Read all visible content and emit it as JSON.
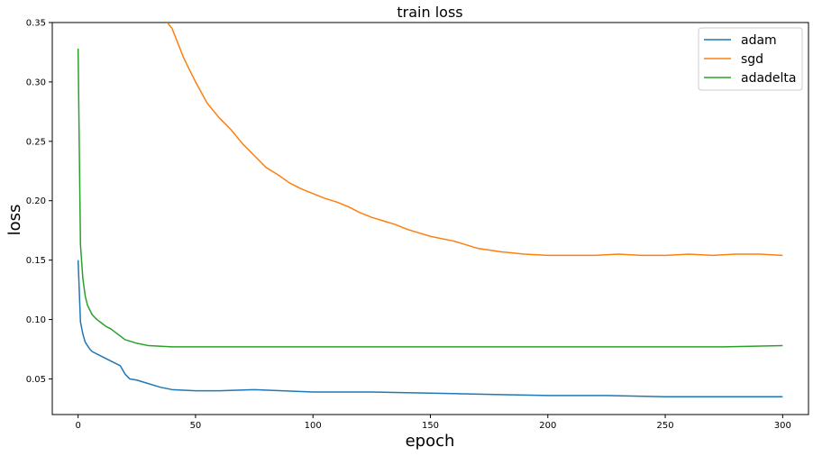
{
  "chart_data": {
    "type": "line",
    "title": "train loss",
    "xlabel": "epoch",
    "ylabel": "loss",
    "xlim": [
      -11,
      311
    ],
    "ylim": [
      0.02,
      0.35
    ],
    "xticks": [
      0,
      50,
      100,
      150,
      200,
      250,
      300
    ],
    "yticks": [
      0.05,
      0.1,
      0.15,
      0.2,
      0.25,
      0.3,
      0.35
    ],
    "ytick_labels": [
      "0.05",
      "0.10",
      "0.15",
      "0.20",
      "0.25",
      "0.30",
      "0.35"
    ],
    "grid": false,
    "legend_position": "top-right",
    "series": [
      {
        "name": "adam",
        "color": "#1f77b4",
        "points": [
          [
            0,
            0.15
          ],
          [
            1,
            0.098
          ],
          [
            2,
            0.088
          ],
          [
            3,
            0.081
          ],
          [
            4,
            0.078
          ],
          [
            5,
            0.075
          ],
          [
            6,
            0.073
          ],
          [
            8,
            0.071
          ],
          [
            10,
            0.069
          ],
          [
            12,
            0.067
          ],
          [
            14,
            0.065
          ],
          [
            16,
            0.063
          ],
          [
            18,
            0.061
          ],
          [
            20,
            0.054
          ],
          [
            22,
            0.05
          ],
          [
            25,
            0.049
          ],
          [
            30,
            0.046
          ],
          [
            35,
            0.043
          ],
          [
            40,
            0.041
          ],
          [
            50,
            0.04
          ],
          [
            60,
            0.04
          ],
          [
            75,
            0.041
          ],
          [
            100,
            0.039
          ],
          [
            125,
            0.039
          ],
          [
            150,
            0.038
          ],
          [
            175,
            0.037
          ],
          [
            200,
            0.036
          ],
          [
            225,
            0.036
          ],
          [
            250,
            0.035
          ],
          [
            275,
            0.035
          ],
          [
            300,
            0.035
          ]
        ]
      },
      {
        "name": "sgd",
        "color": "#ff7f0e",
        "points": [
          [
            38,
            0.35
          ],
          [
            40,
            0.345
          ],
          [
            45,
            0.32
          ],
          [
            50,
            0.3
          ],
          [
            55,
            0.282
          ],
          [
            60,
            0.27
          ],
          [
            65,
            0.26
          ],
          [
            70,
            0.248
          ],
          [
            75,
            0.238
          ],
          [
            80,
            0.228
          ],
          [
            85,
            0.222
          ],
          [
            90,
            0.215
          ],
          [
            95,
            0.21
          ],
          [
            100,
            0.206
          ],
          [
            105,
            0.202
          ],
          [
            110,
            0.199
          ],
          [
            115,
            0.195
          ],
          [
            120,
            0.19
          ],
          [
            125,
            0.186
          ],
          [
            130,
            0.183
          ],
          [
            135,
            0.18
          ],
          [
            140,
            0.176
          ],
          [
            145,
            0.173
          ],
          [
            150,
            0.17
          ],
          [
            160,
            0.166
          ],
          [
            170,
            0.16
          ],
          [
            180,
            0.157
          ],
          [
            190,
            0.155
          ],
          [
            200,
            0.154
          ],
          [
            210,
            0.154
          ],
          [
            220,
            0.154
          ],
          [
            230,
            0.155
          ],
          [
            240,
            0.154
          ],
          [
            250,
            0.154
          ],
          [
            260,
            0.155
          ],
          [
            270,
            0.154
          ],
          [
            280,
            0.155
          ],
          [
            290,
            0.155
          ],
          [
            300,
            0.154
          ]
        ]
      },
      {
        "name": "adadelta",
        "color": "#2ca02c",
        "points": [
          [
            0,
            0.328
          ],
          [
            1,
            0.163
          ],
          [
            2,
            0.135
          ],
          [
            3,
            0.12
          ],
          [
            4,
            0.112
          ],
          [
            6,
            0.104
          ],
          [
            8,
            0.1
          ],
          [
            10,
            0.097
          ],
          [
            12,
            0.094
          ],
          [
            14,
            0.092
          ],
          [
            16,
            0.089
          ],
          [
            18,
            0.086
          ],
          [
            20,
            0.083
          ],
          [
            25,
            0.08
          ],
          [
            30,
            0.078
          ],
          [
            40,
            0.077
          ],
          [
            50,
            0.077
          ],
          [
            75,
            0.077
          ],
          [
            100,
            0.077
          ],
          [
            125,
            0.077
          ],
          [
            150,
            0.077
          ],
          [
            175,
            0.077
          ],
          [
            200,
            0.077
          ],
          [
            225,
            0.077
          ],
          [
            250,
            0.077
          ],
          [
            275,
            0.077
          ],
          [
            300,
            0.078
          ]
        ]
      }
    ]
  }
}
